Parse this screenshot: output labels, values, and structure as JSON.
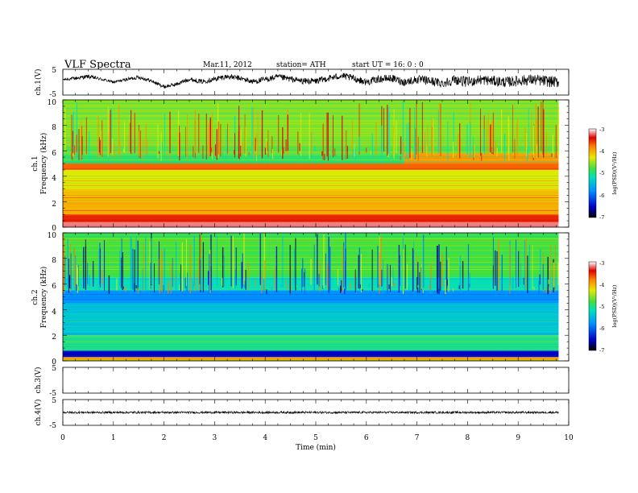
{
  "header": {
    "title": "VLF  Spectra",
    "date": "Mar.11, 2012",
    "station": "station= ATH",
    "start": "start  UT  =    16: 0  : 0"
  },
  "chart_data": [
    {
      "type": "line",
      "name": "ch1-waveform",
      "ylabel": "ch.1(V)",
      "ylim": [
        -5,
        5
      ],
      "yticks": [
        "5",
        "-5"
      ],
      "x": [
        0,
        0.25,
        0.5,
        0.75,
        1.0,
        1.25,
        1.5,
        1.75,
        2.0,
        2.25,
        2.5,
        2.75,
        3.0,
        3.25,
        3.5,
        3.75,
        4.0,
        4.25,
        4.5,
        4.75,
        5.0,
        5.25,
        5.5,
        5.75,
        6.0,
        6.25,
        6.5,
        6.75,
        7.0,
        7.25,
        7.5,
        7.75,
        8.0,
        8.25,
        8.5,
        8.75,
        9.0,
        9.25,
        9.5,
        9.8
      ],
      "values": [
        1.0,
        1.5,
        2.2,
        1.2,
        0.0,
        1.0,
        2.0,
        0.5,
        -1.8,
        -0.8,
        1.2,
        0.2,
        1.2,
        2.2,
        1.5,
        0.2,
        1.0,
        2.0,
        1.2,
        0.4,
        0.4,
        1.5,
        2.5,
        1.5,
        0.0,
        1.2,
        1.5,
        0.0,
        1.0,
        0.5,
        -0.5,
        1.0,
        0.0,
        1.0,
        0.5,
        0.0,
        0.5,
        1.0,
        0.5,
        0.0
      ],
      "noise_envelope": [
        0.5,
        0.7,
        0.8,
        0.6,
        0.5,
        0.6,
        0.8,
        0.7,
        0.7,
        0.8,
        0.8,
        0.9,
        1.0,
        1.0,
        1.0,
        1.1,
        1.2,
        1.2,
        1.2,
        1.2,
        1.3,
        1.3,
        1.3,
        1.4,
        1.4,
        1.4,
        1.5,
        1.6,
        1.7,
        1.8,
        1.8,
        1.9,
        2.0,
        2.0,
        2.0,
        2.1,
        2.1,
        2.1,
        2.2,
        2.2
      ]
    },
    {
      "type": "heatmap",
      "name": "ch1-spectrogram",
      "ylabel_top": "ch.1",
      "ylabel": "Frequency  (kHz)",
      "ylim": [
        0,
        10
      ],
      "yticks": [
        "0",
        "2",
        "4",
        "6",
        "8",
        "10"
      ],
      "colorbar": {
        "label": "log(PSD)(V²/Hz)",
        "range": [
          -7,
          -3
        ],
        "ticks": [
          "-3",
          "-4",
          "-5",
          "-6",
          "-7"
        ]
      },
      "bands": [
        {
          "f": [
            0.0,
            0.4
          ],
          "level": -3.2
        },
        {
          "f": [
            0.4,
            1.0
          ],
          "level": -3.5
        },
        {
          "f": [
            1.0,
            2.0
          ],
          "level": -4.0
        },
        {
          "f": [
            2.0,
            3.0
          ],
          "level": -4.1
        },
        {
          "f": [
            3.0,
            4.5
          ],
          "level": -4.3
        },
        {
          "f": [
            4.5,
            5.0
          ],
          "level": -3.7
        },
        {
          "f": [
            5.0,
            5.8
          ],
          "level": -4.9,
          "after_6_75": -3.9
        },
        {
          "f": [
            5.8,
            6.5
          ],
          "level": -4.7
        },
        {
          "f": [
            6.5,
            10.0
          ],
          "level": -4.6
        }
      ]
    },
    {
      "type": "heatmap",
      "name": "ch2-spectrogram",
      "ylabel_top": "ch.2",
      "ylabel": "Frequency  (kHz)",
      "ylim": [
        0,
        10
      ],
      "yticks": [
        "0",
        "2",
        "4",
        "6",
        "8",
        "10"
      ],
      "colorbar": {
        "label": "log(PSD)(V²/Hz)",
        "range": [
          -7,
          -3
        ],
        "ticks": [
          "-3",
          "-4",
          "-5",
          "-6",
          "-7"
        ]
      },
      "bands": [
        {
          "f": [
            0.0,
            0.3
          ],
          "level": -4.0
        },
        {
          "f": [
            0.3,
            0.8
          ],
          "level": -6.5
        },
        {
          "f": [
            0.8,
            2.0
          ],
          "level": -5.0
        },
        {
          "f": [
            2.0,
            4.5
          ],
          "level": -5.4
        },
        {
          "f": [
            4.5,
            5.5
          ],
          "level": -5.8
        },
        {
          "f": [
            5.5,
            6.5
          ],
          "level": -5.2
        },
        {
          "f": [
            6.5,
            10.0
          ],
          "level": -4.8
        }
      ]
    },
    {
      "type": "line",
      "name": "ch3-waveform",
      "ylabel": "ch.3(V)",
      "ylim": [
        -5,
        5
      ],
      "yticks": [
        "5",
        "-5"
      ],
      "x": [],
      "values": []
    },
    {
      "type": "line",
      "name": "ch4-waveform",
      "ylabel": "ch.4(V)",
      "ylim": [
        -5,
        5
      ],
      "yticks": [
        "5",
        "-5"
      ],
      "x": [
        0,
        9.8
      ],
      "values": [
        0,
        0
      ],
      "noise_envelope": [
        0.4,
        0.4
      ]
    }
  ],
  "xaxis": {
    "label": "Time  (min)",
    "xlim": [
      0,
      10
    ],
    "ticks": [
      "0",
      "1",
      "2",
      "3",
      "4",
      "5",
      "6",
      "7",
      "8",
      "9",
      "10"
    ],
    "data_end": 9.8
  }
}
